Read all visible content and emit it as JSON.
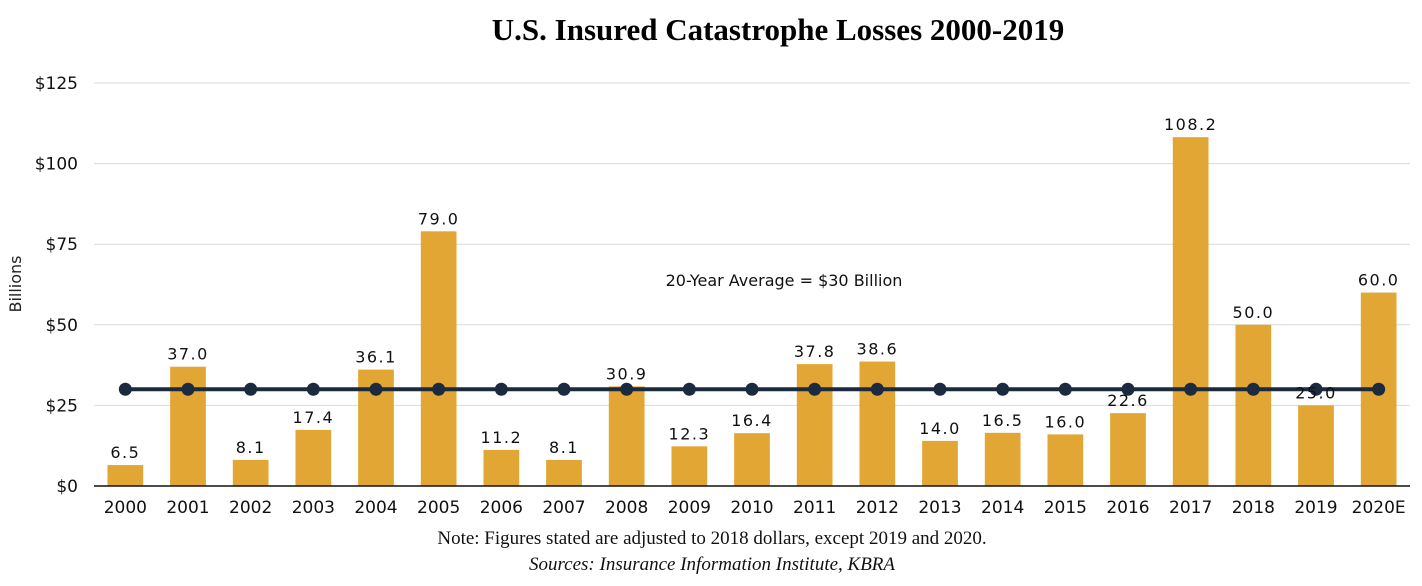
{
  "chart_data": {
    "type": "bar",
    "title": "U.S. Insured Catastrophe Losses 2000-2019",
    "ylabel": "Billions",
    "xlabel": "",
    "categories": [
      "2000",
      "2001",
      "2002",
      "2003",
      "2004",
      "2005",
      "2006",
      "2007",
      "2008",
      "2009",
      "2010",
      "2011",
      "2012",
      "2013",
      "2014",
      "2015",
      "2016",
      "2017",
      "2018",
      "2019",
      "2020E"
    ],
    "values": [
      6.5,
      37.0,
      8.1,
      17.4,
      36.1,
      79.0,
      11.2,
      8.1,
      30.9,
      12.3,
      16.4,
      37.8,
      38.6,
      14.0,
      16.5,
      16.0,
      22.6,
      108.2,
      50.0,
      25.0,
      60.0
    ],
    "data_labels": [
      "6.5",
      "37.0",
      "8.1",
      "17.4",
      "36.1",
      "79.0",
      "11.2",
      "8.1",
      "30.9",
      "12.3",
      "16.4",
      "37.8",
      "38.6",
      "14.0",
      "16.5",
      "16.0",
      "22.6",
      "108.2",
      "50.0",
      "25.0",
      "60.0"
    ],
    "ylim": [
      0,
      125
    ],
    "yticks": [
      0,
      25,
      50,
      75,
      100,
      125
    ],
    "ytick_labels": [
      "$0",
      "$25",
      "$50",
      "$75",
      "$100",
      "$125"
    ],
    "grid": true,
    "legend": "none",
    "average_line": {
      "value": 30,
      "label": "20-Year Average = $30 Billion"
    },
    "colors": {
      "bar": "#E2A634",
      "average_line": "#1B2A3F",
      "grid": "#D9D9D9",
      "axis": "#111111"
    },
    "note": "Note: Figures stated are adjusted to 2018 dollars, except 2019 and 2020.",
    "source": "Sources: Insurance Information Institute, KBRA"
  }
}
